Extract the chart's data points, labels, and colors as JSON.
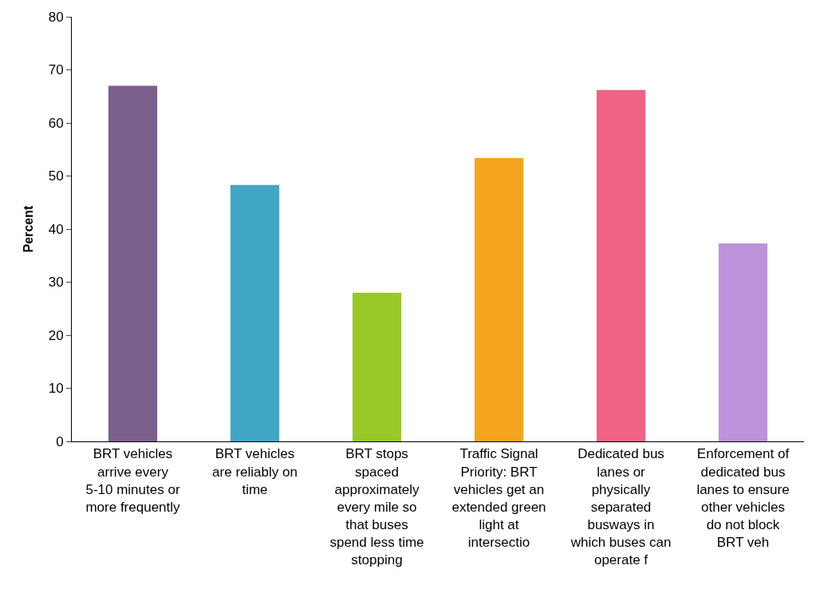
{
  "chart_data": {
    "type": "bar",
    "ylabel": "Percent",
    "categories": [
      "BRT vehicles arrive every 5-10 minutes or more frequently",
      "BRT vehicles are reliably on time",
      "BRT stops spaced approximately every mile so that buses spend less time stopping",
      "Traffic Signal Priority: BRT vehicles get an extended green light at intersectio",
      "Dedicated bus lanes or physically separated busways in which buses can operate f",
      "Enforcement of dedicated bus lanes to ensure other vehicles do not block BRT veh"
    ],
    "values": [
      67,
      48.3,
      28,
      53.4,
      66.2,
      37.3
    ],
    "colors": [
      "#7b5f8c",
      "#41a5c4",
      "#98c929",
      "#f4a51d",
      "#f06384",
      "#bf93db"
    ],
    "ylim": [
      0,
      80
    ],
    "yticks": [
      0,
      10,
      20,
      30,
      40,
      50,
      60,
      70,
      80
    ],
    "legend": false
  }
}
